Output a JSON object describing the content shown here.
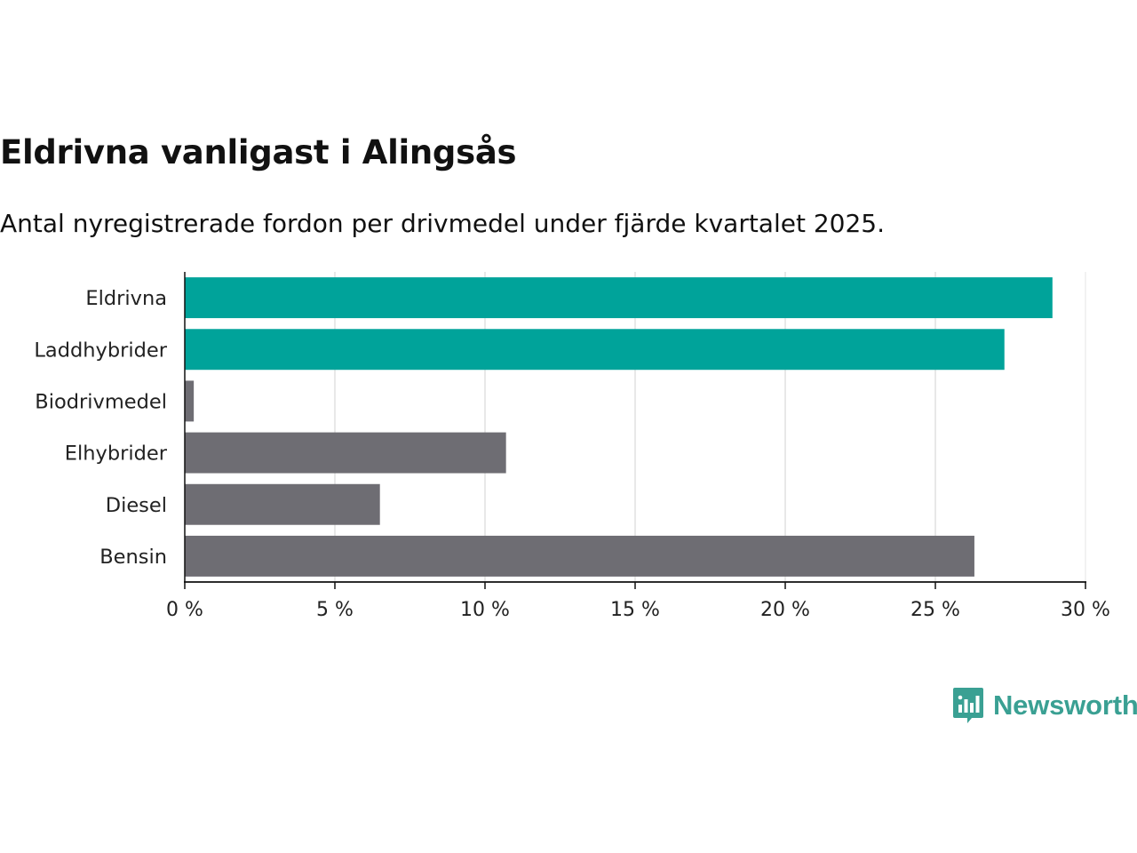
{
  "header": {
    "title": "Eldrivna vanligast i Alingsås",
    "subtitle": "Antal nyregistrerade fordon per drivmedel under fjärde kvartalet 2025."
  },
  "chart_data": {
    "type": "bar",
    "orientation": "horizontal",
    "title": "Eldrivna vanligast i Alingsås",
    "subtitle": "Antal nyregistrerade fordon per drivmedel under fjärde kvartalet 2025.",
    "xlabel": "",
    "ylabel": "",
    "xlim": [
      0,
      30
    ],
    "x_ticks": [
      0,
      5,
      10,
      15,
      20,
      25,
      30
    ],
    "x_tick_labels": [
      "0 %",
      "5 %",
      "10 %",
      "15 %",
      "20 %",
      "25 %",
      "30 %"
    ],
    "grid": true,
    "categories": [
      "Eldrivna",
      "Laddhybrider",
      "Biodrivmedel",
      "Elhybrider",
      "Diesel",
      "Bensin"
    ],
    "values": [
      28.9,
      27.3,
      0.3,
      10.7,
      6.5,
      26.3
    ],
    "bar_colors": [
      "#00a39a",
      "#00a39a",
      "#6e6d73",
      "#6e6d73",
      "#6e6d73",
      "#6e6d73"
    ]
  },
  "brand": {
    "name": "Newsworthy",
    "logo_icon": "newsworthy-logo-icon",
    "color": "#3aa093"
  }
}
